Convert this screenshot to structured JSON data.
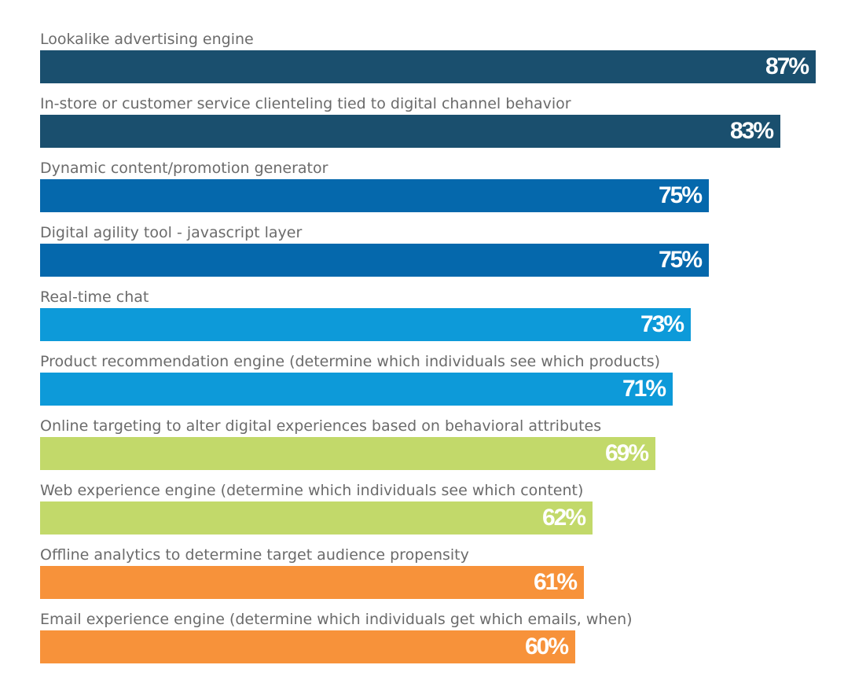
{
  "chart_data": {
    "type": "bar",
    "orientation": "horizontal",
    "categories": [
      "Lookalike advertising engine",
      "In-store or customer service clienteling tied to digital channel behavior",
      "Dynamic content/promotion generator",
      "Digital agility tool - javascript layer",
      "Real-time chat",
      "Product recommendation engine (determine which individuals see which products)",
      "Online targeting to alter digital experiences based on behavioral attributes",
      "Web experience engine (determine which individuals see which content)",
      "Offline analytics to determine target audience propensity",
      "Email experience engine (determine which individuals get which emails, when)"
    ],
    "values": [
      87,
      83,
      75,
      75,
      73,
      71,
      69,
      62,
      61,
      60
    ],
    "value_labels": [
      "87%",
      "83%",
      "75%",
      "75%",
      "73%",
      "71%",
      "69%",
      "62%",
      "61%",
      "60%"
    ],
    "colors": [
      "#1a4f6e",
      "#1a4f6e",
      "#0568ac",
      "#0568ac",
      "#0d9ad9",
      "#0d9ad9",
      "#c2d96a",
      "#c2d96a",
      "#f7923a",
      "#f7923a"
    ],
    "xlim": [
      0,
      87
    ],
    "grid": false,
    "legend": "none"
  }
}
